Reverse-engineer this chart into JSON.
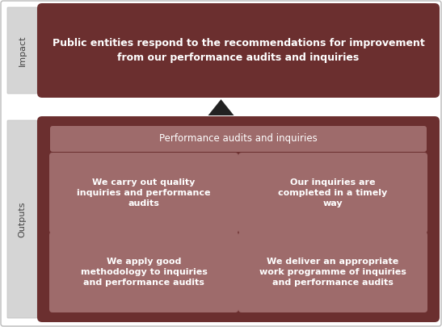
{
  "impact_text": "Public entities respond to the recommendations for improvement\nfrom our performance audits and inquiries",
  "impact_label": "Impact",
  "outputs_label": "Outputs",
  "outputs_header": "Performance audits and inquiries",
  "output_boxes": [
    "We carry out quality\ninquiries and performance\naudits",
    "Our inquiries are\ncompleted in a timely\nway",
    "We apply good\nmethodology to inquiries\nand performance audits",
    "We deliver an appropriate\nwork programme of inquiries\nand performance audits"
  ],
  "dark_brown": "#6B2F2F",
  "medium_brown": "#9E6B6B",
  "light_gray_label": "#D5D5D5",
  "white_text": "#FFFFFF",
  "dark_text": "#444444",
  "background": "#FFFFFF",
  "border_color": "#BBBBBB"
}
